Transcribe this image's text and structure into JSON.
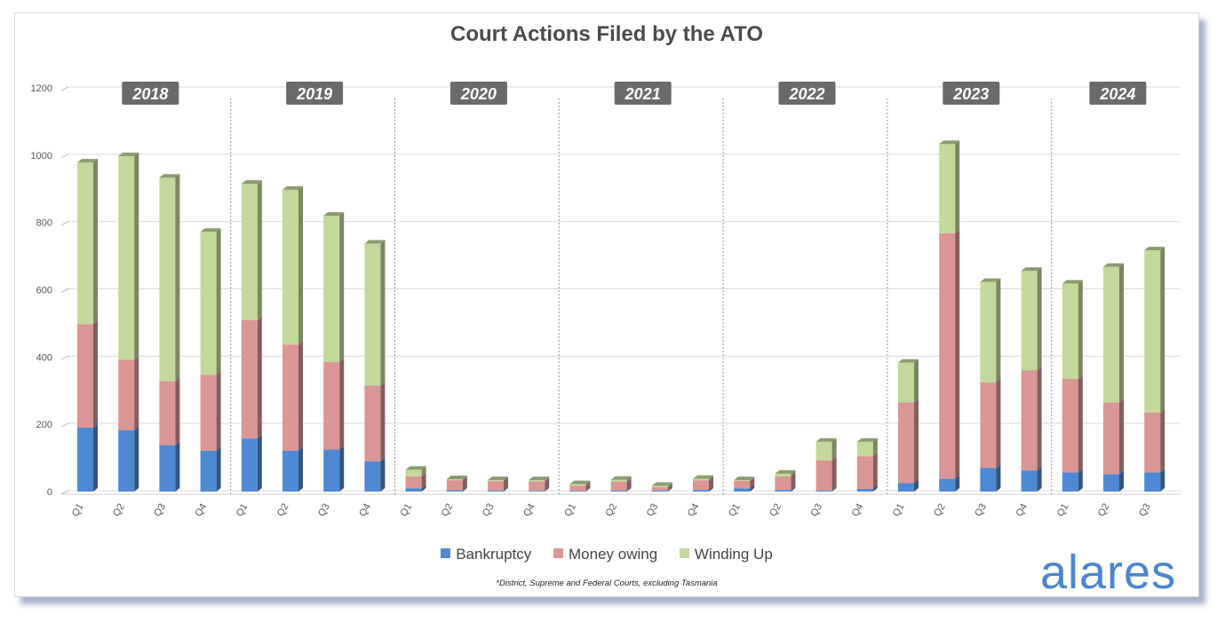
{
  "brand": "alares",
  "footnote": "*District, Supreme and Federal Courts, excluding Tasmania",
  "colors": {
    "Bankruptcy": "#4f89d3",
    "Money owing": "#da9694",
    "Winding Up": "#c3d99b"
  },
  "chart_data": {
    "type": "bar",
    "stacked": true,
    "title": "Court Actions Filed by the ATO",
    "ylim": [
      0,
      1200
    ],
    "yticks": [
      0,
      200,
      400,
      600,
      800,
      1000,
      1200
    ],
    "grid": true,
    "legend_position": "bottom",
    "groups": [
      "2018",
      "2019",
      "2020",
      "2021",
      "2022",
      "2023",
      "2024"
    ],
    "categories": [
      "Q1",
      "Q2",
      "Q3",
      "Q4",
      "Q1",
      "Q2",
      "Q3",
      "Q4",
      "Q1",
      "Q2",
      "Q3",
      "Q4",
      "Q1",
      "Q2",
      "Q3",
      "Q4",
      "Q1",
      "Q2",
      "Q3",
      "Q4",
      "Q1",
      "Q2",
      "Q3",
      "Q4",
      "Q1",
      "Q2",
      "Q3"
    ],
    "category_group": [
      0,
      0,
      0,
      0,
      1,
      1,
      1,
      1,
      2,
      2,
      2,
      2,
      3,
      3,
      3,
      3,
      4,
      4,
      4,
      4,
      5,
      5,
      5,
      5,
      6,
      6,
      6
    ],
    "series": [
      {
        "name": "Bankruptcy",
        "values": [
          190,
          182,
          138,
          122,
          158,
          122,
          125,
          90,
          10,
          4,
          3,
          2,
          2,
          3,
          3,
          5,
          10,
          5,
          3,
          8,
          25,
          38,
          70,
          63,
          57,
          52,
          57
        ]
      },
      {
        "name": "Money owing",
        "values": [
          308,
          210,
          190,
          225,
          352,
          315,
          260,
          225,
          35,
          30,
          28,
          28,
          16,
          26,
          10,
          28,
          22,
          40,
          90,
          97,
          240,
          730,
          255,
          298,
          278,
          213,
          178
        ]
      },
      {
        "name": "Winding Up",
        "values": [
          480,
          605,
          605,
          425,
          405,
          460,
          435,
          422,
          20,
          3,
          3,
          4,
          4,
          6,
          4,
          5,
          2,
          8,
          55,
          43,
          118,
          265,
          298,
          295,
          283,
          403,
          482
        ]
      }
    ]
  }
}
